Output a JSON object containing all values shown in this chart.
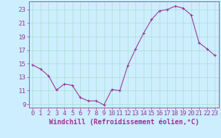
{
  "x": [
    0,
    1,
    2,
    3,
    4,
    5,
    6,
    7,
    8,
    9,
    10,
    11,
    12,
    13,
    14,
    15,
    16,
    17,
    18,
    19,
    20,
    21,
    22,
    23
  ],
  "y": [
    14.8,
    14.2,
    13.2,
    11.1,
    12.0,
    11.8,
    10.0,
    9.5,
    9.5,
    8.9,
    11.2,
    11.0,
    14.7,
    17.2,
    19.5,
    21.5,
    22.8,
    23.0,
    23.5,
    23.2,
    22.2,
    18.1,
    17.2,
    16.2
  ],
  "line_color": "#993399",
  "marker": "+",
  "bg_color": "#cceeff",
  "grid_color": "#aaddcc",
  "xlabel": "Windchill (Refroidissement éolien,°C)",
  "yticks": [
    9,
    11,
    13,
    15,
    17,
    19,
    21,
    23
  ],
  "ylim": [
    8.5,
    24.2
  ],
  "xlim": [
    -0.5,
    23.5
  ],
  "xticks": [
    0,
    1,
    2,
    3,
    4,
    5,
    6,
    7,
    8,
    9,
    10,
    11,
    12,
    13,
    14,
    15,
    16,
    17,
    18,
    19,
    20,
    21,
    22,
    23
  ],
  "tick_color": "#993399",
  "axis_color": "#993399",
  "font_color": "#993399",
  "font_size": 6.5,
  "label_font_size": 7.0
}
